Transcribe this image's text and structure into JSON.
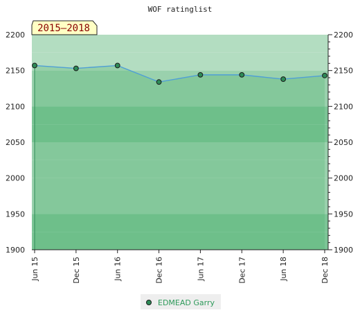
{
  "chart_data": {
    "type": "area",
    "title": "WOF ratinglist",
    "period_label": "2015–2018",
    "categories": [
      "Jun 15",
      "Dec 15",
      "Jun 16",
      "Dec 16",
      "Jun 17",
      "Dec 17",
      "Jun 18",
      "Dec 18"
    ],
    "series": [
      {
        "name": "EDMEAD Garry",
        "x": [
          "Jun 15",
          "Dec 15",
          "Jun 16",
          "Dec 16",
          "Jun 17",
          "Dec 17",
          "Jun 18",
          "Dec 18"
        ],
        "values": [
          2157,
          2153,
          2157,
          2134,
          2144,
          2144,
          2138,
          2143
        ]
      }
    ],
    "ylim": [
      1900,
      2200
    ],
    "yticks": [
      1900,
      1950,
      2000,
      2050,
      2100,
      2150,
      2200
    ],
    "ytick_labels": [
      "1900",
      "1950",
      "2000",
      "2050",
      "2100",
      "2150",
      "2200"
    ],
    "xlabel": "",
    "ylabel": "",
    "legend_position": "bottom-center",
    "grid": true,
    "colors": {
      "line": "#4f9fd6",
      "marker": "#2e8b57",
      "fill": "#4caf6a",
      "band_light": "#b3ddc1",
      "band_mid": "#9ad1ad",
      "band_dark": "#7cc596",
      "legend_text": "#2e9a5a",
      "period_bg": "#ffffc4",
      "period_text": "#8b0000"
    }
  }
}
